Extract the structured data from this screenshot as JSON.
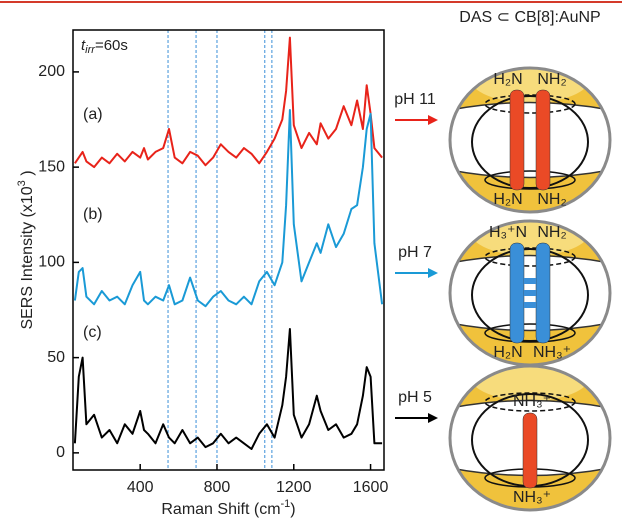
{
  "chart_data": {
    "type": "line",
    "x_label": [
      "Raman Shift (cm",
      "-1",
      ")"
    ],
    "y_label": [
      "SERS Intensity (x10",
      "3",
      " )"
    ],
    "annotation": [
      "t",
      "irr",
      "=60s"
    ],
    "series_labels": [
      "(a)",
      "(b)",
      "(c)"
    ],
    "x": [
      60,
      80,
      100,
      120,
      160,
      200,
      240,
      280,
      320,
      360,
      400,
      420,
      440,
      480,
      520,
      550,
      580,
      620,
      660,
      700,
      740,
      780,
      820,
      860,
      900,
      940,
      980,
      1020,
      1060,
      1100,
      1140,
      1160,
      1180,
      1200,
      1240,
      1280,
      1320,
      1340,
      1380,
      1420,
      1460,
      1500,
      1530,
      1560,
      1580,
      1600,
      1620,
      1660
    ],
    "series": [
      {
        "color": "#e8231a",
        "values": [
          152,
          155,
          158,
          153,
          150,
          155,
          152,
          157,
          153,
          158,
          155,
          160,
          154,
          158,
          160,
          170,
          155,
          152,
          158,
          156,
          151,
          155,
          162,
          158,
          155,
          160,
          157,
          152,
          158,
          165,
          175,
          190,
          218,
          172,
          160,
          168,
          162,
          173,
          165,
          170,
          182,
          172,
          185,
          170,
          193,
          178,
          160,
          155
        ]
      },
      {
        "color": "#1a9ad6",
        "values": [
          80,
          95,
          97,
          82,
          78,
          85,
          80,
          82,
          78,
          88,
          95,
          80,
          78,
          82,
          80,
          88,
          78,
          80,
          92,
          80,
          77,
          82,
          85,
          80,
          78,
          82,
          78,
          90,
          95,
          88,
          100,
          130,
          180,
          120,
          90,
          100,
          110,
          105,
          120,
          108,
          115,
          128,
          130,
          150,
          170,
          178,
          110,
          78
        ]
      },
      {
        "color": "#000000",
        "values": [
          5,
          40,
          50,
          15,
          20,
          8,
          12,
          5,
          15,
          10,
          22,
          12,
          10,
          5,
          15,
          8,
          5,
          12,
          5,
          8,
          3,
          5,
          10,
          5,
          8,
          5,
          2,
          10,
          15,
          8,
          25,
          40,
          65,
          20,
          8,
          15,
          30,
          22,
          12,
          15,
          8,
          10,
          15,
          30,
          45,
          40,
          5,
          5
        ]
      }
    ],
    "reference_lines": [
      545,
      691,
      800,
      1049,
      1086
    ],
    "reference_color": "#3a8fd8",
    "xlim": [
      50,
      1670
    ],
    "ylim": [
      -9,
      222
    ],
    "xticks": [
      400,
      800,
      1200,
      1600
    ],
    "yticks": [
      0,
      50,
      100,
      150,
      200
    ]
  },
  "diagram": {
    "title": "DAS ⊂ CB[8]:AuNP",
    "panels": [
      {
        "condition": "pH 11",
        "color": "#e8231a",
        "rod": "#ea4a26",
        "labels": [
          "H₂N",
          "NH₂",
          "H₂N",
          "NH₂"
        ]
      },
      {
        "condition": "pH 7",
        "color": "#1a9ad6",
        "rod": "#3a8fd8",
        "labels": [
          "H₃⁺N",
          "NH₂",
          "H₂N",
          "NH₃⁺"
        ]
      },
      {
        "condition": "pH 5",
        "color": "#000000",
        "rod": "#ea4a26",
        "labels": [
          "NH₃⁺",
          "NH₃⁺"
        ]
      }
    ]
  }
}
